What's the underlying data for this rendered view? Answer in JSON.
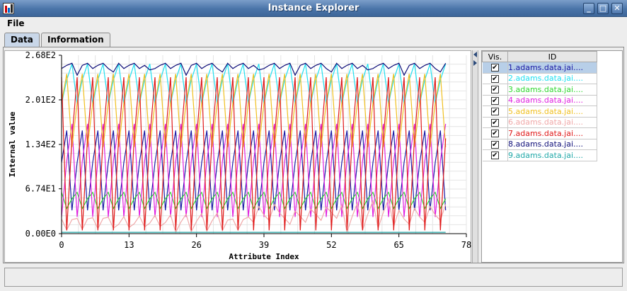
{
  "window": {
    "title": "Instance Explorer",
    "buttons": {
      "minimize": "_",
      "maximize": "□",
      "close": "✕"
    }
  },
  "menu": {
    "file": "File"
  },
  "tabs": [
    {
      "label": "Data",
      "active": true
    },
    {
      "label": "Information",
      "active": false
    }
  ],
  "table": {
    "headers": {
      "vis": "Vis.",
      "id": "ID"
    },
    "check_glyph": "✔",
    "rows": [
      {
        "label": "1.adams.data.jai....",
        "color": "#1a1aa6",
        "visible": true,
        "selected": true
      },
      {
        "label": "2.adams.data.jai....",
        "color": "#20e0f0",
        "visible": true,
        "selected": false
      },
      {
        "label": "3.adams.data.jai....",
        "color": "#30d830",
        "visible": true,
        "selected": false
      },
      {
        "label": "4.adams.data.jai....",
        "color": "#e020e0",
        "visible": true,
        "selected": false
      },
      {
        "label": "5.adams.data.jai....",
        "color": "#f0c020",
        "visible": true,
        "selected": false
      },
      {
        "label": "6.adams.data.jai....",
        "color": "#f0a8a8",
        "visible": true,
        "selected": false
      },
      {
        "label": "7.adams.data.jai....",
        "color": "#e01818",
        "visible": true,
        "selected": false
      },
      {
        "label": "8.adams.data.jai....",
        "color": "#10107a",
        "visible": true,
        "selected": false
      },
      {
        "label": "9.adams.data.jai....",
        "color": "#20a8a8",
        "visible": true,
        "selected": false
      }
    ]
  },
  "status": {
    "text": ""
  },
  "chart_data": {
    "type": "line",
    "xlabel": "Attribute Index",
    "ylabel": "Internal value",
    "xlim": [
      0,
      78
    ],
    "ylim": [
      0,
      268
    ],
    "x_ticks": [
      "0",
      "13",
      "26",
      "39",
      "52",
      "65",
      "78"
    ],
    "y_ticks": [
      "0.00E0",
      "6.74E1",
      "1.34E2",
      "2.01E2",
      "2.68E2"
    ],
    "grid": true,
    "series": [
      {
        "name": "1.adams.data.jai....",
        "color": "#1a1aa6",
        "base": 95,
        "amp": 60,
        "period": 3,
        "phase": 1,
        "noise": 0
      },
      {
        "name": "2.adams.data.jai....",
        "color": "#20e0f0",
        "base": 225,
        "amp": 30,
        "period": 3,
        "phase": 0,
        "noise": 0
      },
      {
        "name": "3.adams.data.jai....",
        "color": "#30d830",
        "base": 50,
        "amp": 12,
        "period": 3,
        "phase": 2,
        "noise": 0
      },
      {
        "name": "4.adams.data.jai....",
        "color": "#e020e0",
        "base": 95,
        "amp": 70,
        "period": 3,
        "phase": 0,
        "noise": 0
      },
      {
        "name": "5.adams.data.jai....",
        "color": "#f0c020",
        "base": 185,
        "amp": 55,
        "period": 3,
        "phase": 1,
        "noise": 0
      },
      {
        "name": "6.adams.data.jai....",
        "color": "#f0a8a8",
        "base": 12,
        "amp": 10,
        "period": 3,
        "phase": 2,
        "noise": 1
      },
      {
        "name": "7.adams.data.jai....",
        "color": "#e01818",
        "base": 120,
        "amp": 115,
        "period": 3,
        "phase": 2,
        "noise": 0
      },
      {
        "name": "8.adams.data.jai....",
        "color": "#10107a",
        "base": 252,
        "amp": 4,
        "period": 3,
        "phase": 0,
        "noise": 2
      },
      {
        "name": "9.adams.data.jai....",
        "color": "#20a8a8",
        "base": 2,
        "amp": 0,
        "period": 3,
        "phase": 0,
        "noise": 0
      }
    ]
  }
}
